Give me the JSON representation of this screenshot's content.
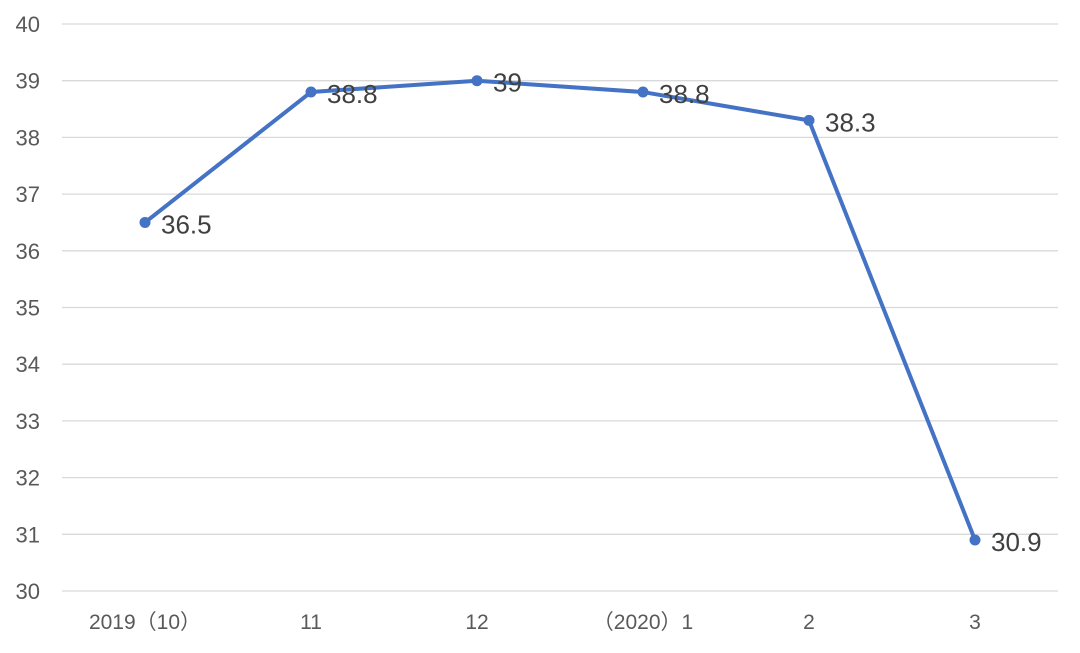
{
  "chart_data": {
    "type": "line",
    "categories": [
      "2019（10）",
      "11",
      "12",
      "（2020）1",
      "2",
      "3"
    ],
    "series": [
      {
        "values": [
          36.5,
          38.8,
          39,
          38.8,
          38.3,
          30.9
        ]
      }
    ],
    "data_labels": [
      "36.5",
      "38.8",
      "39",
      "38.8",
      "38.3",
      "30.9"
    ],
    "yticks": [
      "30",
      "31",
      "32",
      "33",
      "34",
      "35",
      "36",
      "37",
      "38",
      "39",
      "40"
    ],
    "ylim": [
      30,
      40
    ],
    "grid": "horizontal",
    "legend": "none",
    "colors": {
      "line": "#4472c4",
      "grid": "#d9d9d9",
      "text": "#595959"
    }
  }
}
